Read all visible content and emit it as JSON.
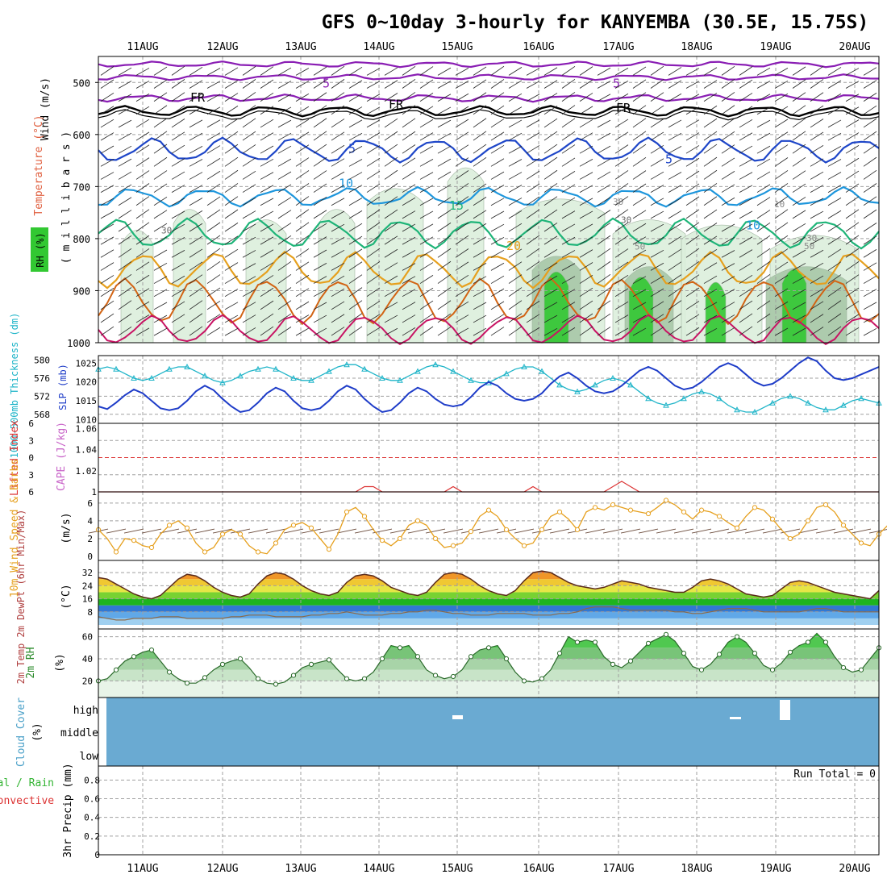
{
  "title": "GFS 0~10day 3-hourly for KANYEMBA (30.5E, 15.75S)",
  "dates": [
    "11AUG",
    "12AUG",
    "13AUG",
    "14AUG",
    "15AUG",
    "16AUG",
    "17AUG",
    "18AUG",
    "19AUG",
    "20AUG"
  ],
  "colors": {
    "frame": "#000000",
    "grid": "#a0a0a0",
    "temp_purple": "#8a1eb4",
    "temp_blue": "#1e46c8",
    "temp_lightblue": "#1e96dc",
    "temp_green": "#1eb478",
    "temp_orange": "#e6a01e",
    "temp_darkorange": "#d26414",
    "temp_red": "#c81464",
    "rh_light": "#dcefdc",
    "rh_mid": "#a8c8a8",
    "rh_dark": "#6a9a6a",
    "rh_green": "#32c832",
    "slp": "#1e3cc8",
    "thickness": "#1eb4c8",
    "li": "#dc3232",
    "cape": "#c864c8",
    "wind10": "#e6a01e",
    "cloud": "#6aaad2",
    "dewpt": "#8a6a4a",
    "rh2m": "#32b432"
  },
  "panels": {
    "upper": {
      "ylabel_parts": [
        "Wind (m/s)",
        "Temperature (°C)",
        "RH (%)",
        "( m i l l i b a r s )"
      ],
      "yticks": [
        "500",
        "600",
        "700",
        "800",
        "900",
        "1000"
      ],
      "contour_labels": [
        "5",
        "5",
        "FR",
        "FR",
        "FR",
        "5",
        "5",
        "10",
        "15",
        "20",
        "10",
        "30",
        "30",
        "50",
        "30",
        "50",
        "10",
        "30"
      ]
    },
    "slp": {
      "ylabel_left": "1000-500mb Thickness (dm)",
      "ylabel_right": "SLP (mb)",
      "left_ticks": [
        "580",
        "576",
        "572",
        "568"
      ],
      "right_ticks": [
        "1025",
        "1020",
        "1015",
        "1010"
      ]
    },
    "li": {
      "ylabel_left": "Lifted Index",
      "ylabel_right": "CAPE (J/kg)",
      "left_ticks": [
        "6",
        "3",
        "0",
        "3",
        "6"
      ],
      "right_ticks": [
        "1.06",
        "1.04",
        "1.02",
        "1"
      ]
    },
    "wind": {
      "ylabel": "10m Wind Speed & Barbs",
      "unit": "(m/s)",
      "yticks": [
        "6",
        "4",
        "2",
        "0"
      ]
    },
    "temp": {
      "ylabel": "2m Temp 2m DewPt (6hr Min/Max)",
      "unit": "(°C)",
      "yticks": [
        "32",
        "24",
        "16",
        "8"
      ]
    },
    "rh": {
      "ylabel": "2m RH",
      "unit": "(%)",
      "yticks": [
        "60",
        "40",
        "20"
      ]
    },
    "cloud": {
      "ylabel": "Cloud Cover",
      "unit": "(%)",
      "levels": [
        "high",
        "middle",
        "low"
      ]
    },
    "precip": {
      "ylabel_a": "Total / Rain",
      "ylabel_b": "Convective",
      "ylabel_c": "3hr Precip (mm)",
      "yticks": [
        "0.8",
        "0.6",
        "0.4",
        "0.2",
        "0"
      ],
      "run_total": "Run Total = 0"
    }
  },
  "chart_data": [
    {
      "type": "line",
      "title": "GFS 0~10day 3-hourly for KANYEMBA (30.5E, 15.75S)",
      "panel": "SLP / 1000-500mb Thickness",
      "x_start": "10AUG 15Z",
      "x_step_hours": 3,
      "series": [
        {
          "name": "SLP (mb)",
          "values": [
            1013.5,
            1012.8,
            1014.5,
            1016.5,
            1018,
            1017,
            1015,
            1013,
            1012.5,
            1013,
            1015,
            1017.5,
            1019,
            1017.8,
            1015.5,
            1013.5,
            1012,
            1012.5,
            1014.5,
            1017,
            1018.5,
            1017.5,
            1015,
            1013,
            1012.5,
            1013,
            1015,
            1017.5,
            1019,
            1018,
            1015.5,
            1013.5,
            1012,
            1012.5,
            1014.5,
            1017,
            1018.5,
            1017.5,
            1015.5,
            1014,
            1013.5,
            1014,
            1016,
            1018.5,
            1020,
            1019,
            1017,
            1015.5,
            1015,
            1015.5,
            1017,
            1019.5,
            1021.5,
            1022.5,
            1021,
            1019,
            1017.5,
            1017,
            1017.5,
            1019,
            1021,
            1023,
            1024,
            1023,
            1021,
            1019,
            1018,
            1018.5,
            1020,
            1022,
            1024,
            1025,
            1024,
            1022,
            1020,
            1019,
            1019.5,
            1021,
            1023,
            1025,
            1026.5,
            1025.5,
            1023,
            1021,
            1020.5,
            1021,
            1022,
            1023,
            1024
          ]
        },
        {
          "name": "1000-500mb Thickness (dm)",
          "values": [
            578,
            578.5,
            578,
            577,
            576,
            575.5,
            576,
            577,
            578,
            578.5,
            578.5,
            577.5,
            576.5,
            575.5,
            575,
            575.5,
            576.5,
            577.5,
            578,
            578.5,
            578,
            577,
            576,
            575.5,
            575.5,
            576.5,
            577.5,
            578.5,
            579,
            579,
            578,
            577,
            576,
            575.5,
            575.5,
            576.5,
            577.5,
            578.5,
            579,
            578.5,
            577.5,
            576.5,
            575.5,
            575,
            575,
            576,
            577,
            578,
            578.5,
            578.5,
            577.5,
            576,
            574.5,
            573.5,
            573,
            573.5,
            574.5,
            575.5,
            576,
            575.5,
            574.5,
            573,
            571.5,
            570.5,
            570,
            570.5,
            571.5,
            572.5,
            573,
            572.5,
            571.5,
            570,
            569,
            568.5,
            568.5,
            569.5,
            570.5,
            571.5,
            572,
            571.5,
            570.5,
            569.5,
            569,
            569,
            570,
            571,
            571.5,
            571,
            570.5
          ]
        }
      ],
      "left_ylim": [
        566,
        581
      ],
      "right_ylim": [
        1009,
        1027
      ]
    },
    {
      "type": "line",
      "panel": "10m Wind Speed",
      "x_start": "10AUG 15Z",
      "x_step_hours": 3,
      "series": [
        {
          "name": "10m Wind Speed (m/s)",
          "values": [
            3,
            2,
            0.5,
            2,
            1.8,
            1.2,
            1,
            2.5,
            3.5,
            4,
            3.2,
            1.5,
            0.5,
            1,
            2.5,
            3,
            2.5,
            1.2,
            0.5,
            0.3,
            1.5,
            3,
            3.5,
            3.8,
            3.2,
            2,
            0.8,
            2.5,
            5,
            5.5,
            4.5,
            3,
            1.8,
            1.2,
            2,
            3.5,
            4,
            3.5,
            2,
            1,
            1.2,
            1.5,
            2.8,
            4.5,
            5.2,
            4.5,
            3,
            2,
            1.2,
            1.5,
            3,
            4.5,
            5,
            4.2,
            3,
            5,
            5.5,
            5.2,
            5.8,
            5.5,
            5.2,
            5,
            4.8,
            5.5,
            6.3,
            5.8,
            5,
            4.2,
            5.2,
            5,
            4.5,
            3.8,
            3.2,
            4.5,
            5.5,
            5.2,
            4.2,
            3,
            2,
            2.5,
            4,
            5.5,
            5.8,
            5,
            3.5,
            2.5,
            1.5,
            1.2,
            2.5,
            3.5
          ]
        }
      ],
      "ylim": [
        0,
        6.8
      ]
    },
    {
      "type": "area",
      "panel": "2m Temp / 2m DewPt",
      "x_start": "10AUG 15Z",
      "x_step_hours": 3,
      "series": [
        {
          "name": "2m Temp (°C)",
          "values": [
            29,
            28,
            25,
            22,
            19,
            17,
            16,
            18,
            23,
            28,
            31,
            30,
            27,
            23,
            20,
            18,
            17,
            19,
            25,
            30,
            32,
            31,
            28,
            24,
            21,
            19,
            18,
            20,
            26,
            30,
            31,
            30,
            27,
            23,
            21,
            19,
            18,
            20,
            26,
            31,
            32,
            31,
            28,
            24,
            21,
            19,
            18,
            21,
            27,
            32,
            33,
            32,
            29,
            26,
            24,
            23,
            22,
            23,
            25,
            27,
            26,
            25,
            23,
            22,
            21,
            20,
            20,
            23,
            27,
            28,
            27,
            25,
            22,
            19,
            18,
            17,
            18,
            22,
            26,
            27,
            26,
            24,
            22,
            20,
            19,
            18,
            17,
            16,
            21
          ]
        },
        {
          "name": "2m DewPt (°C)",
          "values": [
            5,
            4,
            3,
            3,
            4,
            4,
            4,
            5,
            5,
            5,
            4,
            4,
            4,
            4,
            4,
            5,
            5,
            6,
            6,
            6,
            5,
            5,
            5,
            5,
            6,
            6,
            7,
            7,
            8,
            7,
            6,
            6,
            6,
            7,
            7,
            8,
            8,
            9,
            9,
            8,
            7,
            7,
            6,
            6,
            6,
            7,
            7,
            7,
            7,
            6,
            6,
            6,
            7,
            7,
            8,
            10,
            11,
            11,
            11,
            10,
            9,
            9,
            9,
            9,
            9,
            8,
            8,
            7,
            7,
            8,
            9,
            10,
            10,
            10,
            9,
            8,
            8,
            8,
            8,
            8,
            9,
            10,
            10,
            9,
            8,
            8,
            8,
            8,
            8
          ]
        }
      ],
      "ylim": [
        0,
        37
      ]
    },
    {
      "type": "area",
      "panel": "2m RH",
      "x_start": "10AUG 15Z",
      "x_step_hours": 3,
      "series": [
        {
          "name": "2m RH (%)",
          "values": [
            20,
            22,
            30,
            38,
            42,
            46,
            48,
            38,
            28,
            22,
            18,
            18,
            23,
            30,
            35,
            38,
            40,
            32,
            22,
            18,
            17,
            19,
            25,
            32,
            35,
            37,
            39,
            30,
            22,
            20,
            22,
            28,
            40,
            52,
            50,
            52,
            42,
            30,
            25,
            22,
            24,
            30,
            42,
            48,
            50,
            52,
            40,
            28,
            20,
            19,
            22,
            30,
            45,
            60,
            55,
            57,
            55,
            42,
            35,
            32,
            38,
            46,
            54,
            58,
            62,
            56,
            45,
            33,
            30,
            35,
            44,
            55,
            60,
            55,
            45,
            34,
            30,
            36,
            46,
            52,
            55,
            63,
            55,
            42,
            32,
            28,
            30,
            40,
            50,
            55,
            58,
            60,
            54
          ]
        }
      ],
      "ylim": [
        5,
        67
      ]
    },
    {
      "type": "line",
      "panel": "Lifted Index / CAPE",
      "series": [
        {
          "name": "CAPE (J/kg)",
          "values": [
            1,
            1,
            1,
            1,
            1,
            1,
            1,
            1,
            1,
            1,
            1,
            1,
            1,
            1,
            1,
            1,
            1,
            1,
            1,
            1,
            1,
            1,
            1,
            1,
            1,
            1,
            1,
            1,
            1,
            1,
            1.005,
            1.005,
            1,
            1,
            1,
            1,
            1,
            1,
            1,
            1,
            1.005,
            1,
            1,
            1,
            1,
            1,
            1,
            1,
            1,
            1.005,
            1,
            1,
            1,
            1,
            1,
            1,
            1,
            1,
            1.005,
            1.01,
            1.005,
            1,
            1,
            1,
            1,
            1,
            1,
            1,
            1,
            1,
            1,
            1,
            1,
            1,
            1,
            1,
            1,
            1,
            1,
            1,
            1,
            1,
            1,
            1,
            1,
            1,
            1,
            1,
            1
          ]
        }
      ],
      "ylim": [
        1,
        1.065
      ]
    },
    {
      "type": "bar",
      "panel": "3hr Precip",
      "series": [
        {
          "name": "3hr Precip (mm)",
          "values": []
        }
      ],
      "ylim": [
        0,
        0.95
      ],
      "annotation": "Run Total = 0"
    }
  ]
}
